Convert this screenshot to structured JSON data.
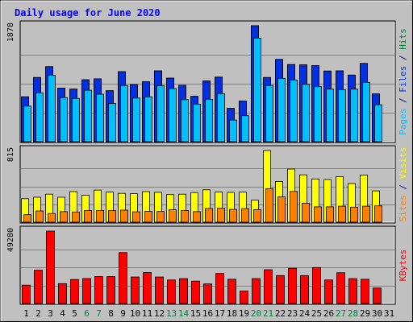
{
  "chart_data": {
    "type": "bar",
    "title": "Daily usage for June 2020",
    "x": [
      "1",
      "2",
      "3",
      "4",
      "5",
      "6",
      "7",
      "8",
      "9",
      "10",
      "11",
      "12",
      "13",
      "14",
      "15",
      "16",
      "17",
      "18",
      "19",
      "20",
      "21",
      "22",
      "23",
      "24",
      "25",
      "26",
      "27",
      "28",
      "29",
      "30",
      "31"
    ],
    "weekend_days": [
      6,
      7,
      13,
      14,
      20,
      21,
      27,
      28
    ],
    "grid": true,
    "panels": [
      {
        "name": "hits-files-pages",
        "ymax_label": "1878",
        "ymax": 1878,
        "ylabel_parts": [
          {
            "text": "Pages",
            "color": "#00c0ff"
          },
          {
            "text": " / ",
            "color": "#000080"
          },
          {
            "text": "Files",
            "color": "#0030e0"
          },
          {
            "text": " / ",
            "color": "#000080"
          },
          {
            "text": "Hits",
            "color": "#008040"
          }
        ],
        "series": [
          {
            "name": "Hits",
            "color": "#008040",
            "values": [
              726,
              1040,
              1216,
              867,
              851,
              1003,
              1019,
              826,
              1135,
              925,
              970,
              1147,
              1029,
              912,
              734,
              985,
              1046,
              540,
              657,
              1878,
              1040,
              1333,
              1250,
              1246,
              1233,
              1144,
              1147,
              1079,
              1267,
              773
            ]
          },
          {
            "name": "Files",
            "color": "#0030e0",
            "values": [
              726,
              1040,
              1216,
              867,
              851,
              1003,
              1019,
              826,
              1135,
              925,
              970,
              1147,
              1029,
              912,
              734,
              985,
              1046,
              540,
              657,
              1878,
              1040,
              1333,
              1250,
              1246,
              1233,
              1144,
              1147,
              1079,
              1267,
              773
            ]
          },
          {
            "name": "Pages",
            "color": "#00c0ff",
            "values": [
              577,
              792,
              1077,
              715,
              702,
              833,
              769,
              620,
              910,
              707,
              726,
              907,
              861,
              681,
              609,
              686,
              779,
              351,
              421,
              1678,
              910,
              1026,
              1000,
              928,
              893,
              852,
              844,
              851,
              962,
              598
            ]
          }
        ]
      },
      {
        "name": "visits-sites",
        "ymax_label": "815",
        "ymax": 815,
        "ylabel_parts": [
          {
            "text": "Sites",
            "color": "#ff8000"
          },
          {
            "text": " / ",
            "color": "#000080"
          },
          {
            "text": "Visits",
            "color": "#ffff00"
          }
        ],
        "series": [
          {
            "name": "Visits",
            "color": "#ffff00",
            "values": [
              267,
              284,
              319,
              284,
              348,
              308,
              365,
              342,
              328,
              324,
              348,
              340,
              314,
              319,
              337,
              368,
              343,
              339,
              342,
              250,
              815,
              463,
              604,
              538,
              492,
              485,
              517,
              440,
              536,
              356
            ]
          },
          {
            "name": "Sites",
            "color": "#ff8000",
            "values": [
              85,
              128,
              99,
              120,
              116,
              133,
              133,
              132,
              137,
              118,
              124,
              122,
              142,
              133,
              120,
              156,
              158,
              146,
              154,
              143,
              382,
              288,
              350,
              215,
              175,
              175,
              182,
              171,
              182,
              186
            ]
          }
        ]
      },
      {
        "name": "kbytes",
        "ymax_label": "49280",
        "ymax": 49280,
        "ylabel_parts": [
          {
            "text": "KBytes",
            "color": "#ff0000"
          }
        ],
        "series": [
          {
            "name": "KBytes",
            "color": "#ff0000",
            "values": [
              12500,
              22600,
              49280,
              13500,
              16300,
              17000,
              18300,
              18300,
              34600,
              18000,
              21000,
              18000,
              16000,
              16900,
              15200,
              13300,
              20400,
              16500,
              8500,
              16900,
              23000,
              19000,
              24000,
              19000,
              24500,
              16000,
              20900,
              16900,
              16500,
              10500
            ]
          }
        ]
      }
    ]
  }
}
